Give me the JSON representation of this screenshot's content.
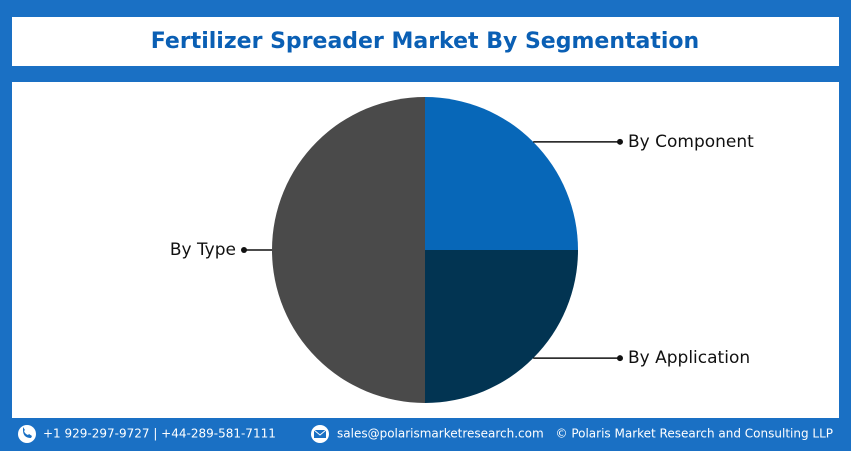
{
  "chart_data": {
    "type": "pie",
    "title": "Fertilizer Spreader Market By Segmentation",
    "categories": [
      "By Component",
      "By Application",
      "By Type"
    ],
    "values": [
      25,
      25,
      50
    ],
    "colors": [
      "#0767b8",
      "#023452",
      "#4a4a4a"
    ]
  },
  "footer": {
    "phone": "+1 929-297-9727 | +44-289-581-7111",
    "email": "sales@polarismarketresearch.com",
    "copyright": "© Polaris Market Research and Consulting LLP"
  }
}
